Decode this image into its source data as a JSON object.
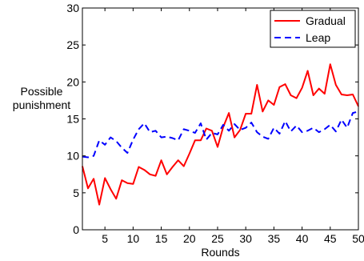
{
  "chart_data": {
    "type": "line",
    "xlabel": "Rounds",
    "ylabel": "Possible punishment",
    "xlim": [
      1,
      50
    ],
    "ylim": [
      0,
      30
    ],
    "xticks": [
      5,
      10,
      15,
      20,
      25,
      30,
      35,
      40,
      45,
      50
    ],
    "yticks": [
      0,
      5,
      10,
      15,
      20,
      25,
      30
    ],
    "grid": false,
    "legend_position": "top-right",
    "x": [
      1,
      2,
      3,
      4,
      5,
      6,
      7,
      8,
      9,
      10,
      11,
      12,
      13,
      14,
      15,
      16,
      17,
      18,
      19,
      20,
      21,
      22,
      23,
      24,
      25,
      26,
      27,
      28,
      29,
      30,
      31,
      32,
      33,
      34,
      35,
      36,
      37,
      38,
      39,
      40,
      41,
      42,
      43,
      44,
      45,
      46,
      47,
      48,
      49,
      50
    ],
    "series": [
      {
        "name": "Gradual",
        "color": "#ff0000",
        "line_style": "solid",
        "values": [
          8.6,
          5.6,
          6.9,
          3.4,
          7.0,
          5.5,
          4.2,
          6.7,
          6.3,
          6.2,
          8.5,
          8.1,
          7.5,
          7.3,
          9.4,
          7.5,
          8.5,
          9.4,
          8.6,
          10.3,
          12.1,
          12.1,
          13.7,
          13.4,
          11.2,
          13.9,
          15.8,
          12.5,
          13.5,
          15.7,
          15.7,
          19.6,
          16.0,
          17.5,
          16.9,
          19.3,
          19.7,
          18.2,
          17.8,
          19.2,
          21.5,
          18.2,
          19.1,
          18.4,
          22.4,
          19.6,
          18.3,
          18.2,
          18.3,
          16.7
        ]
      },
      {
        "name": "Leap",
        "color": "#0000ff",
        "line_style": "dashed",
        "values": [
          9.9,
          9.8,
          10.0,
          12.1,
          11.5,
          12.5,
          12.0,
          11.1,
          10.4,
          12.2,
          13.6,
          14.4,
          13.2,
          13.4,
          12.5,
          12.6,
          12.4,
          12.1,
          13.6,
          13.4,
          13.1,
          14.4,
          12.2,
          13.1,
          12.9,
          14.2,
          13.4,
          14.3,
          13.5,
          13.8,
          14.5,
          13.2,
          12.6,
          12.3,
          13.8,
          13.0,
          14.7,
          13.3,
          14.1,
          13.2,
          13.4,
          13.8,
          13.2,
          13.6,
          14.2,
          13.3,
          14.9,
          13.8,
          15.8,
          16.0
        ]
      }
    ]
  }
}
